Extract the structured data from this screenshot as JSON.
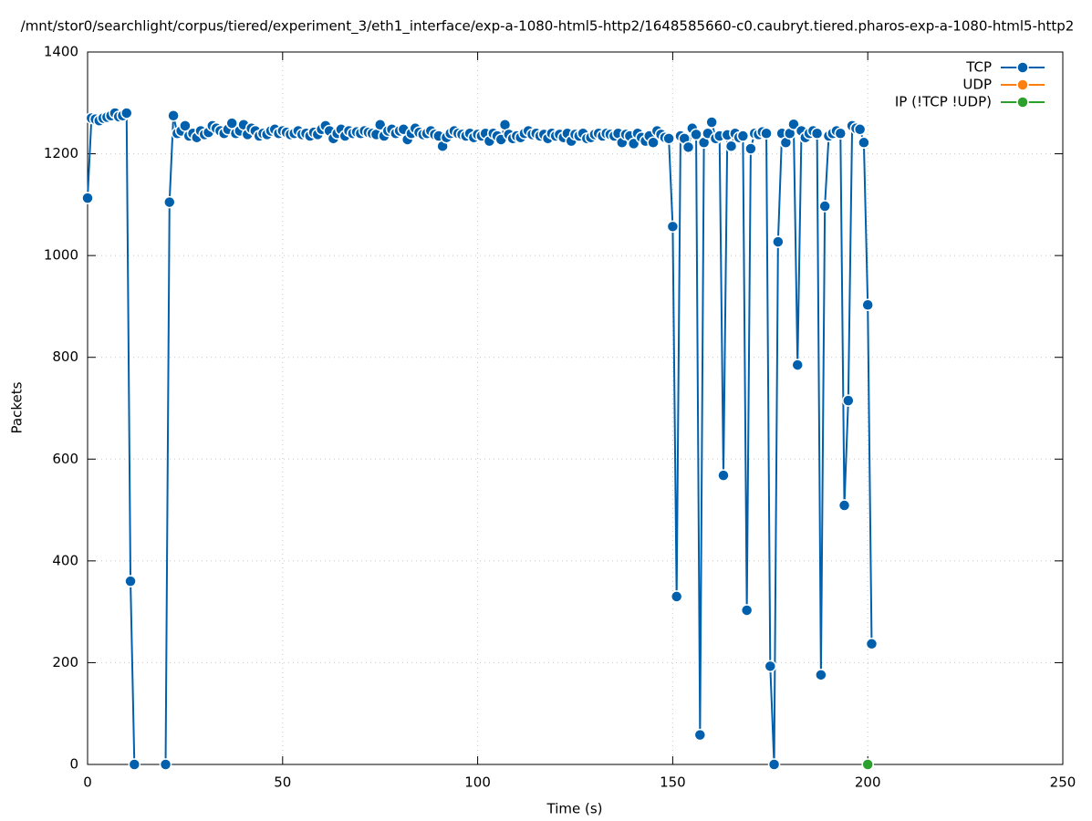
{
  "chart_data": {
    "type": "line",
    "title": "/mnt/stor0/searchlight/corpus/tiered/experiment_3/eth1_interface/exp-a-1080-html5-http2/1648585660-c0.caubryt.tiered.pharos-exp-a-1080-html5-http2",
    "xlabel": "Time (s)",
    "ylabel": "Packets",
    "xlim": [
      0,
      250
    ],
    "xticks": [
      0,
      50,
      100,
      150,
      200,
      250
    ],
    "ylim": [
      0,
      1400
    ],
    "yticks": [
      0,
      200,
      400,
      600,
      800,
      1000,
      1200,
      1400
    ],
    "grid": true,
    "legend": "top-right",
    "series": [
      {
        "name": "TCP",
        "color": "#0060ad",
        "x": [
          0,
          1,
          2,
          3,
          4,
          5,
          6,
          7,
          8,
          9,
          10,
          11,
          12,
          13,
          14,
          15,
          16,
          17,
          18,
          19,
          20,
          21,
          22,
          23,
          24,
          25,
          26,
          27,
          28,
          29,
          30,
          31,
          32,
          33,
          34,
          35,
          36,
          37,
          38,
          39,
          40,
          41,
          42,
          43,
          44,
          45,
          46,
          47,
          48,
          49,
          50,
          51,
          52,
          53,
          54,
          55,
          56,
          57,
          58,
          59,
          60,
          61,
          62,
          63,
          64,
          65,
          66,
          67,
          68,
          69,
          70,
          71,
          72,
          73,
          74,
          75,
          76,
          77,
          78,
          79,
          80,
          81,
          82,
          83,
          84,
          85,
          86,
          87,
          88,
          89,
          90,
          91,
          92,
          93,
          94,
          95,
          96,
          97,
          98,
          99,
          100,
          101,
          102,
          103,
          104,
          105,
          106,
          107,
          108,
          109,
          110,
          111,
          112,
          113,
          114,
          115,
          116,
          117,
          118,
          119,
          120,
          121,
          122,
          123,
          124,
          125,
          126,
          127,
          128,
          129,
          130,
          131,
          132,
          133,
          134,
          135,
          136,
          137,
          138,
          139,
          140,
          141,
          142,
          143,
          144,
          145,
          146,
          147,
          148,
          149,
          150,
          151,
          152,
          153,
          154,
          155,
          156,
          157,
          158,
          159,
          160,
          161,
          162,
          163,
          164,
          165,
          166,
          167,
          168,
          169,
          170,
          171,
          172,
          173,
          174,
          175,
          176,
          177,
          178,
          179,
          180,
          181,
          182,
          183,
          184,
          185,
          186,
          187,
          188,
          189,
          190,
          191,
          192,
          193,
          194,
          195,
          196,
          197,
          198,
          199,
          200,
          201
        ],
        "values": [
          1113,
          1270,
          1268,
          1265,
          1270,
          1272,
          1275,
          1280,
          1273,
          1275,
          1280,
          360,
          0,
          null,
          null,
          null,
          null,
          null,
          null,
          null,
          0,
          1105,
          1275,
          1240,
          1245,
          1255,
          1235,
          1240,
          1232,
          1245,
          1238,
          1242,
          1255,
          1250,
          1245,
          1240,
          1248,
          1260,
          1240,
          1245,
          1257,
          1238,
          1250,
          1245,
          1235,
          1240,
          1238,
          1245,
          1248,
          1240,
          1245,
          1242,
          1238,
          1240,
          1245,
          1238,
          1240,
          1235,
          1242,
          1238,
          1248,
          1255,
          1245,
          1230,
          1240,
          1248,
          1235,
          1245,
          1240,
          1243,
          1240,
          1245,
          1242,
          1240,
          1238,
          1257,
          1235,
          1245,
          1248,
          1240,
          1245,
          1248,
          1228,
          1240,
          1250,
          1242,
          1238,
          1240,
          1245,
          1238,
          1235,
          1215,
          1232,
          1240,
          1245,
          1240,
          1238,
          1235,
          1240,
          1232,
          1238,
          1235,
          1240,
          1225,
          1240,
          1235,
          1228,
          1257,
          1238,
          1230,
          1235,
          1232,
          1240,
          1245,
          1238,
          1240,
          1235,
          1238,
          1230,
          1240,
          1235,
          1238,
          1232,
          1240,
          1225,
          1238,
          1235,
          1240,
          1230,
          1232,
          1238,
          1240,
          1235,
          1240,
          1238,
          1235,
          1240,
          1222,
          1238,
          1235,
          1220,
          1240,
          1232,
          1225,
          1235,
          1222,
          1245,
          1238,
          1232,
          1230,
          1057,
          330,
          1235,
          1230,
          1213,
          1250,
          1238,
          58,
          1222,
          1240,
          1262,
          1230,
          1235,
          568,
          1237,
          1215,
          1240,
          1232,
          1235,
          303,
          1210,
          1240,
          1238,
          1243,
          1240,
          193,
          0,
          1027,
          1240,
          1222,
          1240,
          1258,
          785,
          1245,
          1232,
          1240,
          1245,
          1240,
          176,
          1097,
          1235,
          1240,
          1245,
          1240,
          509,
          715,
          1255,
          1250,
          1248,
          1222,
          903,
          237
        ]
      },
      {
        "name": "UDP",
        "color": "#ff7f0e",
        "x": [],
        "values": []
      },
      {
        "name": "IP (!TCP  !UDP)",
        "color": "#2ca02c",
        "x": [
          200
        ],
        "values": [
          0
        ]
      }
    ]
  }
}
